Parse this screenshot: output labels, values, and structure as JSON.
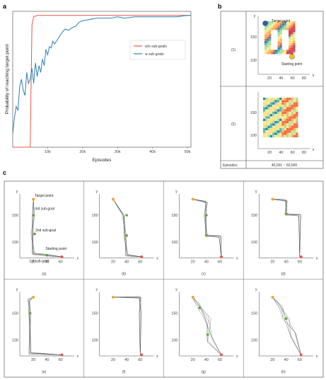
{
  "panels": {
    "a": "a",
    "b": "b",
    "c": "c"
  },
  "chart_data": [
    {
      "type": "line",
      "panel": "a",
      "xlabel": "Episodes",
      "ylabel": "Probability of reaching target point",
      "xlim": [
        0,
        51000
      ],
      "ylim": [
        0,
        1.0
      ],
      "xticks": [
        10000,
        20000,
        30000,
        40000,
        50000
      ],
      "xtick_labels": [
        "10k",
        "20k",
        "30k",
        "40k",
        "50k"
      ],
      "grid": false,
      "legend_position": "right",
      "series": [
        {
          "name": "w/o sub-goals",
          "color": "#e8554e",
          "x": [
            0,
            5000,
            5500,
            6000,
            7000,
            8000,
            12000,
            20000,
            30000,
            40000,
            50000,
            51000
          ],
          "y": [
            0,
            0,
            0.9,
            0.96,
            0.97,
            0.97,
            0.97,
            0.97,
            0.97,
            0.97,
            0.97,
            0.97
          ]
        },
        {
          "name": "w sub-goals",
          "color": "#2f7fb5",
          "x": [
            0,
            500,
            1000,
            1500,
            2000,
            2500,
            3000,
            3500,
            4000,
            4500,
            5000,
            5500,
            6000,
            6500,
            7000,
            7500,
            8000,
            8500,
            9000,
            9500,
            10000,
            10500,
            11000,
            11500,
            12000,
            13000,
            14000,
            15000,
            16000,
            17000,
            18000,
            19000,
            20000,
            22000,
            24000,
            26000,
            28000,
            30000,
            32000,
            35000,
            38000,
            41000,
            44000,
            47000,
            50000,
            51000
          ],
          "y": [
            0.1,
            0.22,
            0.3,
            0.27,
            0.45,
            0.5,
            0.42,
            0.38,
            0.55,
            0.47,
            0.5,
            0.58,
            0.47,
            0.62,
            0.52,
            0.6,
            0.55,
            0.65,
            0.6,
            0.72,
            0.68,
            0.74,
            0.73,
            0.78,
            0.76,
            0.8,
            0.84,
            0.87,
            0.86,
            0.88,
            0.89,
            0.92,
            0.93,
            0.94,
            0.95,
            0.95,
            0.95,
            0.96,
            0.95,
            0.96,
            0.96,
            0.96,
            0.96,
            0.96,
            0.97,
            0.97
          ]
        }
      ]
    },
    {
      "type": "heatmap",
      "panel": "b",
      "rows": [
        {
          "label": "(1)",
          "annotations": [
            "Target point",
            "Starting point"
          ]
        },
        {
          "label": "(2)",
          "annotations": []
        }
      ],
      "xlabel": "x",
      "ylabel": "y",
      "xticks": [
        20,
        40,
        60,
        80
      ],
      "yticks": [
        100,
        150
      ],
      "footer_label": "Episodes",
      "footer_value": "40,001 ~ 50,000"
    },
    {
      "type": "scatter",
      "panel": "c",
      "xlabel": "x",
      "ylabel": "y",
      "xticks": [
        20,
        40,
        60
      ],
      "yticks": [
        100,
        150
      ],
      "subplots": [
        "(a)",
        "(b)",
        "(c)",
        "(d)",
        "(e)",
        "(f)",
        "(g)",
        "(h)"
      ],
      "annotations": [
        "Target point",
        "3rd sub-goal",
        "2nd sub-goal",
        "Starting point",
        "1st sub-goal"
      ]
    }
  ]
}
